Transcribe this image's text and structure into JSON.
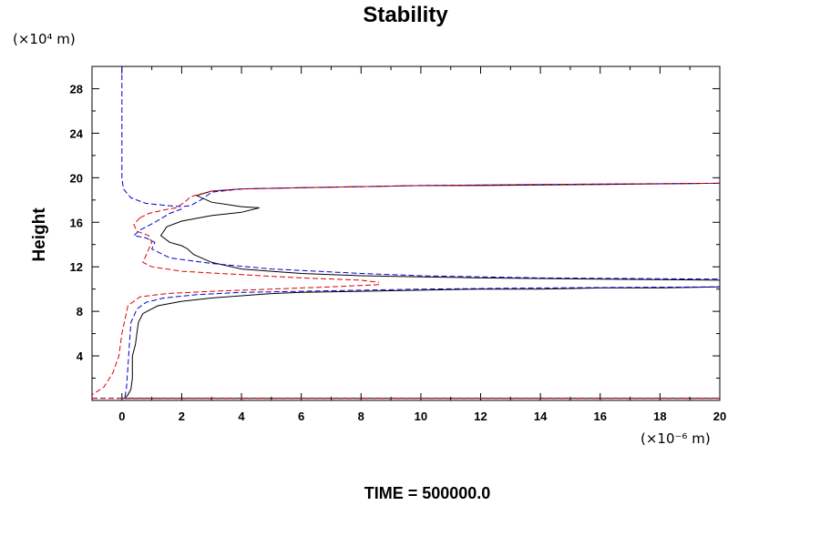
{
  "chart_data": {
    "type": "line",
    "title": "Stability",
    "ylabel": "Height",
    "xlabel": "",
    "y_unit": "(×10⁴ m)",
    "x_unit": "(×10⁻⁶ m)",
    "xlim": [
      -1,
      20
    ],
    "ylim": [
      0,
      30
    ],
    "x_ticks": [
      0,
      2,
      4,
      6,
      8,
      10,
      12,
      14,
      16,
      18,
      20
    ],
    "y_ticks": [
      4,
      8,
      12,
      16,
      20,
      24,
      28
    ],
    "grid": false,
    "legend": "none",
    "series": [
      {
        "color": "#000000",
        "style": "solid",
        "segments": [
          [
            [
              0.1,
              0.2
            ],
            [
              0.2,
              0.5
            ],
            [
              0.3,
              1
            ],
            [
              0.35,
              2
            ],
            [
              0.35,
              3
            ],
            [
              0.35,
              4
            ],
            [
              0.45,
              5
            ],
            [
              0.5,
              6
            ],
            [
              0.55,
              7
            ],
            [
              0.7,
              7.8
            ],
            [
              1.2,
              8.5
            ],
            [
              2,
              8.9
            ],
            [
              3,
              9.2
            ],
            [
              4,
              9.4
            ],
            [
              5,
              9.6
            ],
            [
              6,
              9.7
            ],
            [
              8,
              9.8
            ],
            [
              10,
              9.9
            ],
            [
              12,
              10.0
            ],
            [
              14,
              10.0
            ],
            [
              16,
              10.1
            ],
            [
              18,
              10.1
            ],
            [
              20,
              10.2
            ]
          ],
          [
            [
              20,
              10.8
            ],
            [
              16,
              10.9
            ],
            [
              12,
              11.0
            ],
            [
              10,
              11.1
            ],
            [
              8,
              11.2
            ],
            [
              6,
              11.4
            ],
            [
              5,
              11.6
            ],
            [
              4,
              11.8
            ],
            [
              3,
              12.4
            ],
            [
              2.4,
              13.1
            ],
            [
              2.2,
              13.6
            ],
            [
              2.0,
              13.9
            ],
            [
              1.6,
              14.2
            ],
            [
              1.3,
              14.8
            ],
            [
              1.5,
              15.6
            ],
            [
              2.0,
              16.1
            ],
            [
              3,
              16.6
            ],
            [
              4,
              16.9
            ],
            [
              4.6,
              17.3
            ],
            [
              4,
              17.4
            ],
            [
              3,
              17.8
            ],
            [
              2.5,
              18.4
            ],
            [
              3,
              18.8
            ],
            [
              4,
              19.0
            ],
            [
              6,
              19.1
            ],
            [
              8,
              19.2
            ],
            [
              10,
              19.3
            ],
            [
              12,
              19.3
            ],
            [
              16,
              19.4
            ],
            [
              20,
              19.5
            ]
          ],
          [
            [
              0,
              0.2
            ],
            [
              20,
              0.2
            ]
          ]
        ]
      },
      {
        "color": "#0000cc",
        "style": "dashed",
        "segments": [
          [
            [
              0,
              30
            ],
            [
              0,
              25
            ],
            [
              0,
              22
            ],
            [
              0,
              20
            ],
            [
              0.05,
              19
            ],
            [
              0.3,
              18.2
            ],
            [
              0.8,
              17.7
            ],
            [
              1.5,
              17.5
            ],
            [
              2,
              17.4
            ],
            [
              2.3,
              17.5
            ],
            [
              2.7,
              18.1
            ],
            [
              3,
              18.7
            ],
            [
              4,
              19.0
            ],
            [
              6,
              19.1
            ],
            [
              8,
              19.2
            ],
            [
              10,
              19.3
            ],
            [
              14,
              19.4
            ],
            [
              20,
              19.5
            ]
          ],
          [
            [
              2,
              17.2
            ],
            [
              1.6,
              16.8
            ],
            [
              1.1,
              16.0
            ],
            [
              0.6,
              15.3
            ],
            [
              0.4,
              14.8
            ],
            [
              0.8,
              14.6
            ],
            [
              1.1,
              14.2
            ],
            [
              1.0,
              13.6
            ],
            [
              1.6,
              12.8
            ],
            [
              3,
              12.3
            ],
            [
              5,
              11.8
            ],
            [
              8,
              11.4
            ],
            [
              10,
              11.2
            ],
            [
              14,
              11.0
            ],
            [
              20,
              10.9
            ]
          ],
          [
            [
              0.1,
              0.3
            ],
            [
              0.15,
              1
            ],
            [
              0.2,
              3
            ],
            [
              0.25,
              5
            ],
            [
              0.3,
              7
            ],
            [
              0.5,
              8.2
            ],
            [
              0.8,
              8.8
            ],
            [
              1.4,
              9.2
            ],
            [
              2.5,
              9.5
            ],
            [
              4,
              9.7
            ],
            [
              6,
              9.8
            ],
            [
              8,
              9.9
            ],
            [
              10,
              10.0
            ],
            [
              14,
              10.1
            ],
            [
              20,
              10.2
            ]
          ],
          [
            [
              -1,
              0.2
            ],
            [
              20,
              0.2
            ]
          ]
        ]
      },
      {
        "color": "#dd0000",
        "style": "dashed",
        "segments": [
          [
            [
              0.6,
              16.4
            ],
            [
              0.9,
              16.8
            ],
            [
              1.4,
              17.1
            ],
            [
              1.8,
              17.3
            ],
            [
              2.1,
              17.8
            ],
            [
              2.3,
              18.3
            ],
            [
              3,
              18.8
            ],
            [
              4,
              19.0
            ],
            [
              6,
              19.1
            ],
            [
              8,
              19.2
            ],
            [
              10,
              19.3
            ],
            [
              14,
              19.4
            ],
            [
              20,
              19.5
            ]
          ],
          [
            [
              0.6,
              16.4
            ],
            [
              0.4,
              15.8
            ],
            [
              0.5,
              15.2
            ],
            [
              0.9,
              14.8
            ],
            [
              1.0,
              14.2
            ],
            [
              0.9,
              13.6
            ],
            [
              0.8,
              13.0
            ],
            [
              0.7,
              12.4
            ],
            [
              1,
              12.0
            ],
            [
              2,
              11.6
            ],
            [
              4,
              11.3
            ],
            [
              6,
              11.0
            ],
            [
              8,
              10.8
            ],
            [
              8.6,
              10.6
            ]
          ],
          [
            [
              8.6,
              10.4
            ],
            [
              7,
              10.2
            ],
            [
              5,
              10.0
            ],
            [
              3,
              9.8
            ],
            [
              1.5,
              9.6
            ],
            [
              0.6,
              9.3
            ],
            [
              0.2,
              8.5
            ],
            [
              0,
              6
            ],
            [
              -0.1,
              4
            ],
            [
              -0.3,
              2.5
            ],
            [
              -0.6,
              1.2
            ],
            [
              -1,
              0.5
            ]
          ],
          [
            [
              -1,
              0.2
            ],
            [
              20,
              0.2
            ]
          ]
        ]
      }
    ]
  },
  "footer": {
    "time_label": "TIME = 500000.0"
  }
}
